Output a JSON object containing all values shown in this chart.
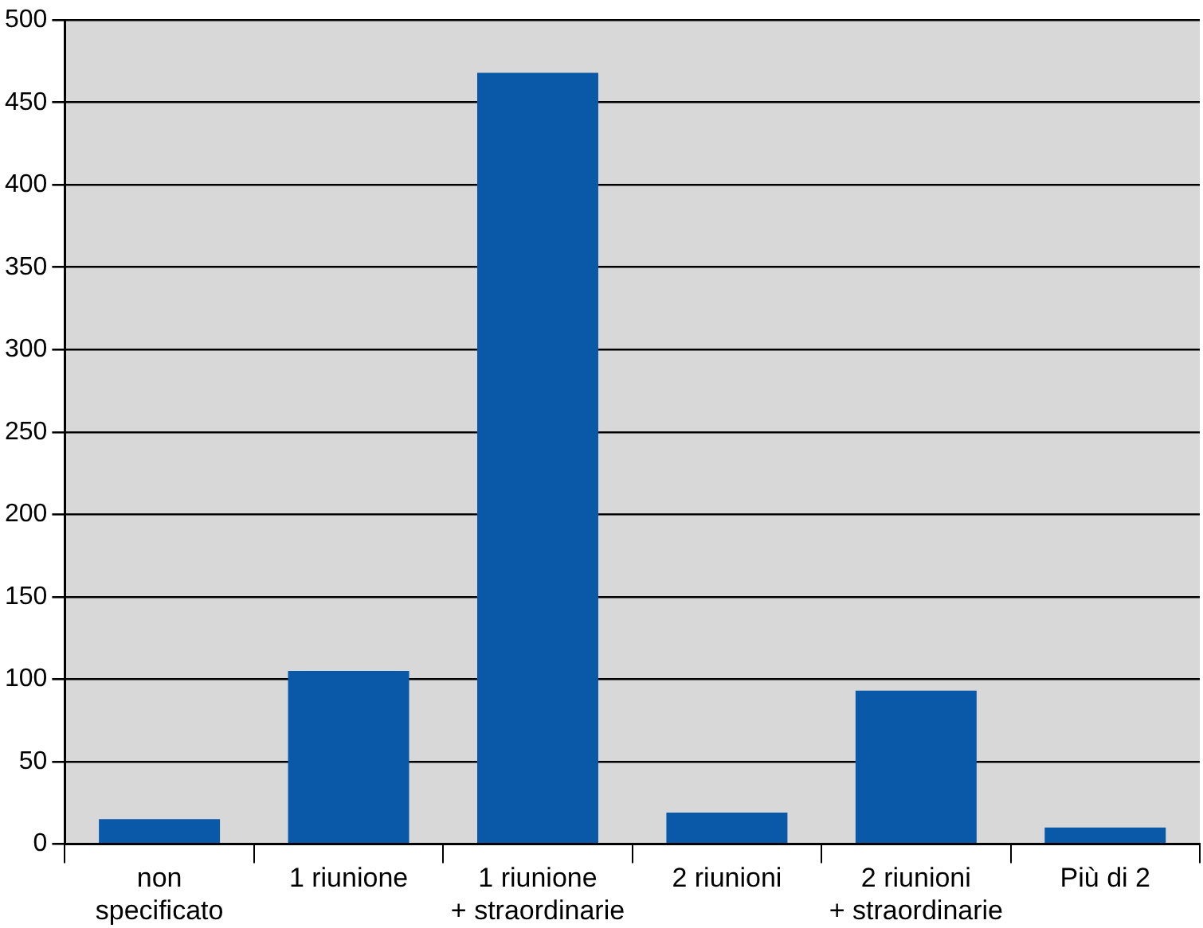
{
  "chart_data": {
    "type": "bar",
    "categories": [
      "non\nspecificato",
      "1 riunione",
      "1 riunione\n+ straordinarie",
      "2 riunioni",
      "2 riunioni\n+ straordinarie",
      "Più di 2"
    ],
    "values": [
      15,
      105,
      468,
      19,
      93,
      10
    ],
    "color": "#0a58a8",
    "ylim": [
      0,
      500
    ],
    "yticks": [
      0,
      50,
      100,
      150,
      200,
      250,
      300,
      350,
      400,
      450,
      500
    ],
    "grid": "y",
    "legend": false
  }
}
